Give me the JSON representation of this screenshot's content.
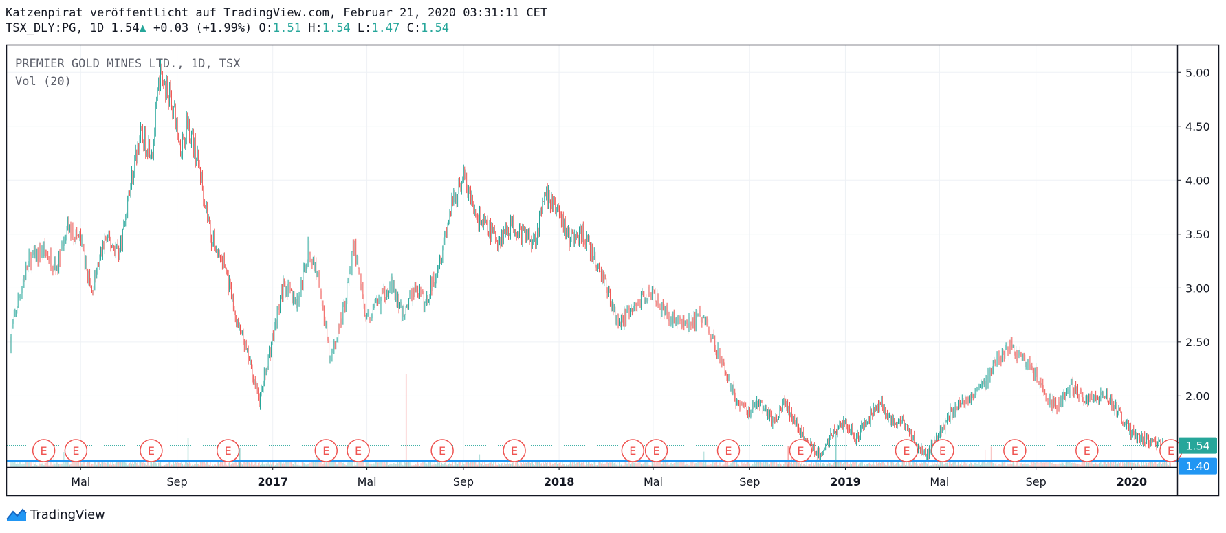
{
  "header": {
    "publisher_line": "Katzenpirat veröffentlicht auf TradingView.com, Februar 21, 2020 03:31:11 CET",
    "symbol": "TSX_DLY:PG, 1D",
    "last": "1.54",
    "change": "+0.03 (+1.99%)",
    "open_label": "O:",
    "open": "1.51",
    "high_label": "H:",
    "high": "1.54",
    "low_label": "L:",
    "low": "1.47",
    "close_label": "C:",
    "close": "1.54"
  },
  "legend": {
    "title": "PREMIER GOLD MINES LTD., 1D, TSX",
    "volume_label": "Vol (20)"
  },
  "footer": {
    "brand": "TradingView"
  },
  "colors": {
    "up": "#26a69a",
    "down": "#ef5350",
    "line": "#2196f3",
    "grid": "#eef1f5"
  },
  "chart_data": {
    "type": "candlestick",
    "x_tick_labels": [
      "Mai",
      "Sep",
      "2017",
      "Mai",
      "Sep",
      "2018",
      "Mai",
      "Sep",
      "2019",
      "Mai",
      "Sep",
      "2020"
    ],
    "x_tick_dates": [
      "2016-05-01",
      "2016-09-01",
      "2017-01-01",
      "2017-05-01",
      "2017-09-01",
      "2018-01-01",
      "2018-05-01",
      "2018-09-01",
      "2019-01-01",
      "2019-05-01",
      "2019-09-01",
      "2020-01-01"
    ],
    "y_ticks": [
      "5.00",
      "4.50",
      "4.00",
      "3.50",
      "3.00",
      "2.50",
      "2.00"
    ],
    "ylim": [
      1.34,
      5.25
    ],
    "xlim": [
      "2016-01-28",
      "2020-02-28"
    ],
    "last_price_label": "1.54",
    "horizontal_line_label": "1.40",
    "horizontal_line_value": 1.4,
    "earnings_marker_label": "E",
    "earnings_dates": [
      "2016-03-15",
      "2016-04-25",
      "2016-07-30",
      "2016-11-05",
      "2017-03-10",
      "2017-04-20",
      "2017-08-05",
      "2017-11-05",
      "2018-04-05",
      "2018-05-05",
      "2018-08-05",
      "2018-11-05",
      "2019-03-20",
      "2019-05-05",
      "2019-08-05",
      "2019-11-05",
      "2020-02-20"
    ],
    "price_path": [
      [
        "2016-02-01",
        2.5
      ],
      [
        "2016-02-10",
        2.85
      ],
      [
        "2016-02-25",
        3.25
      ],
      [
        "2016-03-15",
        3.35
      ],
      [
        "2016-04-01",
        3.2
      ],
      [
        "2016-04-15",
        3.55
      ],
      [
        "2016-05-01",
        3.45
      ],
      [
        "2016-05-15",
        2.95
      ],
      [
        "2016-06-01",
        3.45
      ],
      [
        "2016-06-20",
        3.35
      ],
      [
        "2016-07-01",
        3.85
      ],
      [
        "2016-07-15",
        4.4
      ],
      [
        "2016-08-01",
        4.3
      ],
      [
        "2016-08-10",
        4.98
      ],
      [
        "2016-08-25",
        4.75
      ],
      [
        "2016-09-05",
        4.3
      ],
      [
        "2016-09-15",
        4.55
      ],
      [
        "2016-10-01",
        4.05
      ],
      [
        "2016-10-15",
        3.45
      ],
      [
        "2016-11-01",
        3.2
      ],
      [
        "2016-11-15",
        2.7
      ],
      [
        "2016-12-01",
        2.35
      ],
      [
        "2016-12-15",
        1.95
      ],
      [
        "2017-01-01",
        2.55
      ],
      [
        "2017-01-15",
        3.05
      ],
      [
        "2017-02-01",
        2.85
      ],
      [
        "2017-02-15",
        3.35
      ],
      [
        "2017-03-01",
        3.1
      ],
      [
        "2017-03-15",
        2.3
      ],
      [
        "2017-04-01",
        2.8
      ],
      [
        "2017-04-15",
        3.4
      ],
      [
        "2017-05-01",
        2.7
      ],
      [
        "2017-05-15",
        2.85
      ],
      [
        "2017-06-01",
        3.05
      ],
      [
        "2017-06-15",
        2.75
      ],
      [
        "2017-07-01",
        3.0
      ],
      [
        "2017-07-15",
        2.85
      ],
      [
        "2017-08-01",
        3.25
      ],
      [
        "2017-08-15",
        3.7
      ],
      [
        "2017-09-01",
        4.05
      ],
      [
        "2017-09-15",
        3.7
      ],
      [
        "2017-10-01",
        3.55
      ],
      [
        "2017-10-15",
        3.45
      ],
      [
        "2017-11-01",
        3.6
      ],
      [
        "2017-11-15",
        3.5
      ],
      [
        "2017-12-01",
        3.45
      ],
      [
        "2017-12-15",
        3.85
      ],
      [
        "2018-01-01",
        3.7
      ],
      [
        "2018-01-15",
        3.45
      ],
      [
        "2018-02-01",
        3.5
      ],
      [
        "2018-02-15",
        3.25
      ],
      [
        "2018-03-01",
        3.05
      ],
      [
        "2018-03-15",
        2.7
      ],
      [
        "2018-04-01",
        2.75
      ],
      [
        "2018-04-15",
        2.9
      ],
      [
        "2018-05-01",
        3.0
      ],
      [
        "2018-05-15",
        2.75
      ],
      [
        "2018-06-01",
        2.7
      ],
      [
        "2018-06-15",
        2.65
      ],
      [
        "2018-07-01",
        2.75
      ],
      [
        "2018-07-15",
        2.55
      ],
      [
        "2018-08-01",
        2.25
      ],
      [
        "2018-08-15",
        1.95
      ],
      [
        "2018-09-01",
        1.85
      ],
      [
        "2018-09-15",
        1.95
      ],
      [
        "2018-10-01",
        1.75
      ],
      [
        "2018-10-15",
        1.95
      ],
      [
        "2018-11-01",
        1.7
      ],
      [
        "2018-11-15",
        1.55
      ],
      [
        "2018-12-01",
        1.45
      ],
      [
        "2018-12-15",
        1.65
      ],
      [
        "2019-01-01",
        1.75
      ],
      [
        "2019-01-15",
        1.6
      ],
      [
        "2019-02-01",
        1.8
      ],
      [
        "2019-02-15",
        1.95
      ],
      [
        "2019-03-01",
        1.75
      ],
      [
        "2019-03-15",
        1.75
      ],
      [
        "2019-04-01",
        1.55
      ],
      [
        "2019-04-15",
        1.45
      ],
      [
        "2019-05-01",
        1.65
      ],
      [
        "2019-05-15",
        1.85
      ],
      [
        "2019-06-01",
        1.95
      ],
      [
        "2019-06-15",
        2.05
      ],
      [
        "2019-07-01",
        2.15
      ],
      [
        "2019-07-15",
        2.35
      ],
      [
        "2019-08-01",
        2.45
      ],
      [
        "2019-08-15",
        2.35
      ],
      [
        "2019-09-01",
        2.2
      ],
      [
        "2019-09-15",
        1.95
      ],
      [
        "2019-10-01",
        1.9
      ],
      [
        "2019-10-15",
        2.1
      ],
      [
        "2019-11-01",
        1.95
      ],
      [
        "2019-11-15",
        2.0
      ],
      [
        "2019-12-01",
        2.0
      ],
      [
        "2019-12-15",
        1.85
      ],
      [
        "2020-01-01",
        1.65
      ],
      [
        "2020-01-15",
        1.6
      ],
      [
        "2020-02-01",
        1.55
      ],
      [
        "2020-02-20",
        1.54
      ]
    ]
  }
}
